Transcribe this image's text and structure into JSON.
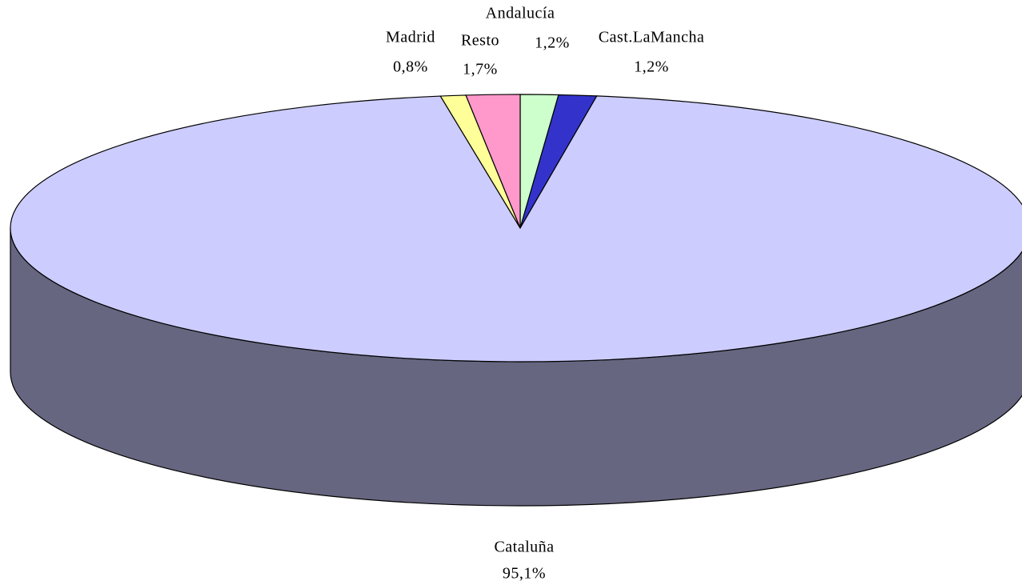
{
  "chart_data": {
    "type": "pie3d",
    "categories": [
      "Andalucía",
      "Cast.LaMancha",
      "Cataluña",
      "Madrid",
      "Resto"
    ],
    "values": [
      1.2,
      1.2,
      95.1,
      0.8,
      1.7
    ],
    "value_labels": [
      "1,2%",
      "1,2%",
      "95,1%",
      "0,8%",
      "1,7%"
    ],
    "colors": [
      "#ccffcc",
      "#3333cc",
      "#ccccff",
      "#ffff99",
      "#ff99cc"
    ]
  }
}
